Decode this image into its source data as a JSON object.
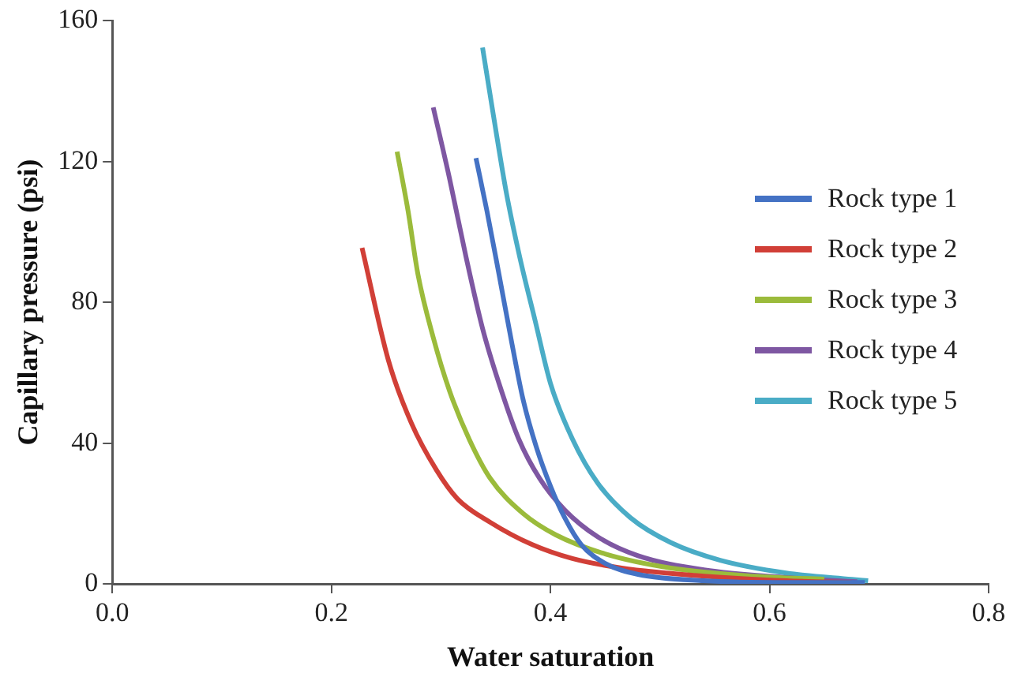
{
  "chart_data": {
    "type": "line",
    "xlabel": "Water saturation",
    "ylabel": "Capillary pressure (psi)",
    "xlim": [
      0,
      0.8
    ],
    "xticks": [
      {
        "value": 0,
        "label": "0.0"
      },
      0.2,
      0.4,
      0.6,
      0.8
    ],
    "ylim": [
      0,
      160
    ],
    "yticks": [
      0,
      40,
      80,
      120,
      160
    ],
    "grid": false,
    "legend": "right",
    "marker": "none",
    "line_style": "solid",
    "series": [
      {
        "name": "Rock type 1",
        "color": "#4472c4",
        "x": [
          0.332,
          0.342,
          0.353,
          0.365,
          0.375,
          0.387,
          0.4,
          0.413,
          0.428,
          0.45,
          0.48,
          0.54,
          0.615,
          0.687
        ],
        "values": [
          121,
          106,
          88,
          68,
          52.4,
          39,
          27.8,
          18.8,
          11.2,
          5.8,
          2.7,
          0.9,
          0.4,
          0.4
        ]
      },
      {
        "name": "Rock type 2",
        "color": "#d13f37",
        "x": [
          0.228,
          0.252,
          0.273,
          0.296,
          0.315,
          0.345,
          0.383,
          0.42,
          0.465,
          0.54,
          0.615,
          0.675
        ],
        "values": [
          95.5,
          63.6,
          45.7,
          32.3,
          24.2,
          17.5,
          11.2,
          7.2,
          4.5,
          2.2,
          0.9,
          0.4
        ]
      },
      {
        "name": "Rock type 3",
        "color": "#9bbb3b",
        "x": [
          0.26,
          0.27,
          0.279,
          0.293,
          0.308,
          0.326,
          0.345,
          0.375,
          0.405,
          0.45,
          0.51,
          0.585,
          0.65
        ],
        "values": [
          122.8,
          106,
          88,
          70,
          54.7,
          41,
          30,
          20,
          13.9,
          8.5,
          4.5,
          2.2,
          1.3
        ]
      },
      {
        "name": "Rock type 4",
        "color": "#7e57a2",
        "x": [
          0.293,
          0.308,
          0.323,
          0.338,
          0.353,
          0.371,
          0.39,
          0.413,
          0.443,
          0.48,
          0.54,
          0.615,
          0.68
        ],
        "values": [
          135.4,
          115,
          92.8,
          72.6,
          57,
          41.2,
          30,
          21,
          13.4,
          8,
          4,
          1.8,
          0.6
        ]
      },
      {
        "name": "Rock type 5",
        "color": "#4aacc6",
        "x": [
          0.338,
          0.348,
          0.36,
          0.372,
          0.386,
          0.4,
          0.42,
          0.443,
          0.473,
          0.51,
          0.555,
          0.615,
          0.675,
          0.69
        ],
        "values": [
          152.4,
          133,
          110.7,
          92.8,
          74.8,
          57,
          41.2,
          28.7,
          18.8,
          11.7,
          6.7,
          3.1,
          1.3,
          0.9
        ]
      }
    ]
  }
}
